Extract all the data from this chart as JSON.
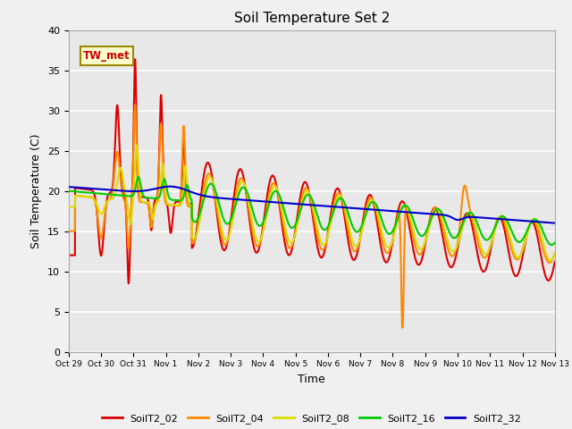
{
  "title": "Soil Temperature Set 2",
  "xlabel": "Time",
  "ylabel": "Soil Temperature (C)",
  "ylim": [
    0,
    40
  ],
  "annotation": "TW_met",
  "series": [
    "SoilT2_02",
    "SoilT2_04",
    "SoilT2_08",
    "SoilT2_16",
    "SoilT2_32"
  ],
  "colors": [
    "#dd0000",
    "#ff8800",
    "#dddd00",
    "#00cc00",
    "#0000cc"
  ],
  "x_tick_labels": [
    "Oct 29",
    "Oct 30",
    "Oct 31",
    "Nov 1",
    "Nov 2",
    "Nov 3",
    "Nov 4",
    "Nov 5",
    "Nov 6",
    "Nov 7",
    "Nov 8",
    "Nov 9",
    "Nov 10",
    "Nov 11",
    "Nov 12",
    "Nov 13"
  ],
  "plot_bg_color": "#e8e8e8",
  "fig_bg_color": "#f0f0f0"
}
